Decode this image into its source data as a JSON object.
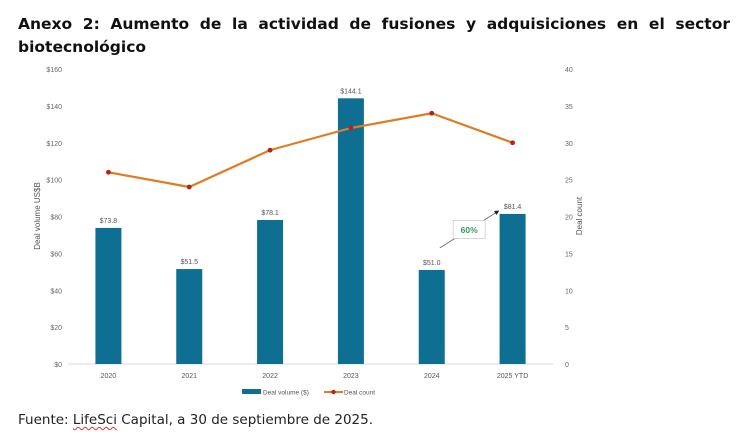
{
  "heading": {
    "title": "Anexo 2: Aumento de la actividad de fusiones y adquisiciones en el sector biotecnológico"
  },
  "source": {
    "prefix": "Fuente: ",
    "company": "LifeSci",
    "suffix": " Capital, a 30 de septiembre de 2025."
  },
  "chart_data": {
    "type": "bar",
    "title": "",
    "categories": [
      "2020",
      "2021",
      "2022",
      "2023",
      "2024",
      "2025 YTD"
    ],
    "series": [
      {
        "name": "Deal volume ($)",
        "type": "bar",
        "axis": "left",
        "values": [
          73.8,
          51.5,
          78.1,
          144.1,
          51.0,
          81.4
        ],
        "labels": [
          "$73.8",
          "$51.5",
          "$78.1",
          "$144.1",
          "$51.0",
          "$81.4"
        ],
        "color": "#0e6f93"
      },
      {
        "name": "Deal count",
        "type": "line",
        "axis": "right",
        "values": [
          26,
          24,
          29,
          32,
          34,
          30
        ],
        "color": "#e07c24",
        "marker_color": "#b8221a"
      }
    ],
    "ylabel": "Deal volume US$B",
    "ylabel_right": "Deal count",
    "xlabel": "",
    "ylim": [
      0,
      160
    ],
    "ylim_right": [
      0,
      40
    ],
    "yticks": [
      "$0",
      "$20",
      "$40",
      "$60",
      "$80",
      "$100",
      "$120",
      "$140",
      "$160"
    ],
    "yticks_right": [
      "0",
      "5",
      "10",
      "15",
      "20",
      "25",
      "30",
      "35",
      "40"
    ],
    "grid": false,
    "legend": "bottom-center",
    "annotation": {
      "text": "60%",
      "from_category": "2024",
      "to_category": "2025 YTD",
      "color": "#2e9e5b"
    }
  }
}
